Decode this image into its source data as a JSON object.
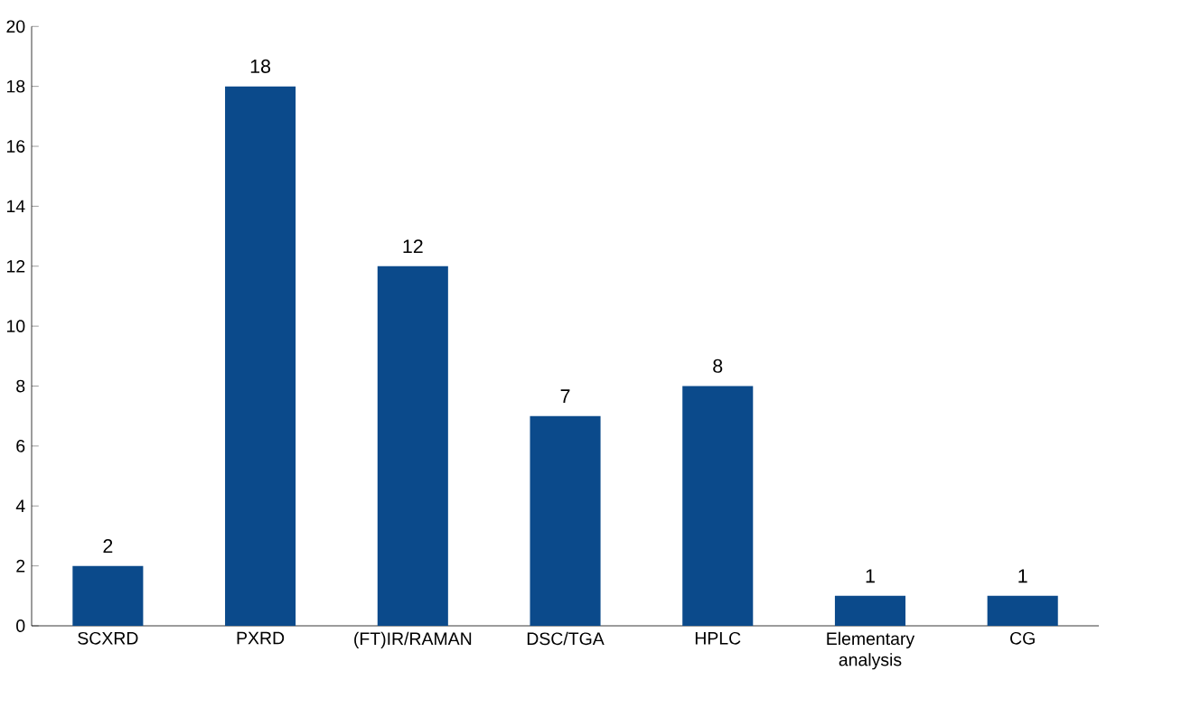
{
  "chart_data": {
    "type": "bar",
    "categories": [
      "SCXRD",
      "PXRD",
      "(FT)IR/RAMAN",
      "DSC/TGA",
      "HPLC",
      "Elementary analysis",
      "CG"
    ],
    "values": [
      2,
      18,
      12,
      7,
      8,
      1,
      1
    ],
    "color": "#0b4a8b",
    "ylim": [
      0,
      20
    ],
    "yticks": [
      0,
      2,
      4,
      6,
      8,
      10,
      12,
      14,
      16,
      18,
      20
    ],
    "data_labels": true
  }
}
